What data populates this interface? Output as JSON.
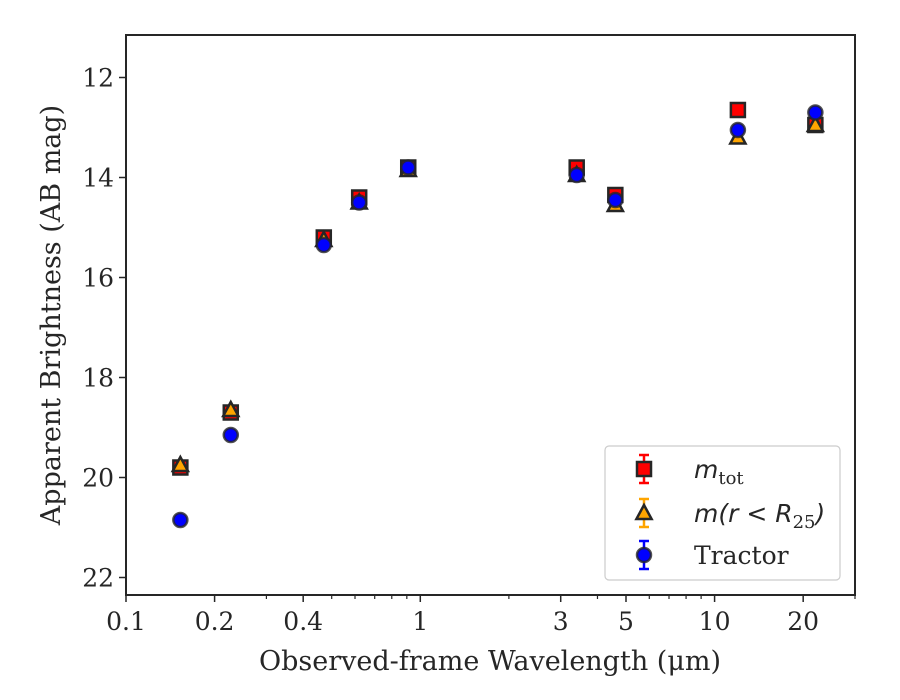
{
  "chart_data": {
    "type": "scatter",
    "title": "",
    "xlabel": "Observed-frame Wavelength (μm)",
    "ylabel": "Apparent Brightness (AB mag)",
    "xscale": "log",
    "xlim": [
      0.1,
      30
    ],
    "ylim": [
      22.35,
      11.15
    ],
    "y_inverted": true,
    "x_ticks": [
      0.1,
      0.2,
      0.4,
      1,
      3,
      5,
      10,
      20
    ],
    "x_tick_labels": [
      "0.1",
      "0.2",
      "0.4",
      "1",
      "3",
      "5",
      "10",
      "20"
    ],
    "y_ticks": [
      12,
      14,
      16,
      18,
      20,
      22
    ],
    "y_tick_labels": [
      "12",
      "14",
      "16",
      "18",
      "20",
      "22"
    ],
    "grid": false,
    "legend_position": "bottom-right",
    "series": [
      {
        "name": "m_tot",
        "legend_base": "m",
        "legend_sub": "tot",
        "marker": "square",
        "color": "#ff0000",
        "edge_color": "#262626",
        "x": [
          0.153,
          0.227,
          0.47,
          0.62,
          0.91,
          3.4,
          4.6,
          12.0,
          22.0
        ],
        "y": [
          19.8,
          18.7,
          15.2,
          14.4,
          13.8,
          13.8,
          14.35,
          12.65,
          12.95
        ]
      },
      {
        "name": "m(r < R25)",
        "legend_base": "m(r < R",
        "legend_sub": "25",
        "legend_tail": ")",
        "marker": "triangle",
        "color": "#ffa500",
        "edge_color": "#262626",
        "x": [
          0.153,
          0.227,
          0.47,
          0.62,
          0.91,
          3.4,
          4.6,
          12.0,
          22.0
        ],
        "y": [
          19.75,
          18.65,
          15.25,
          14.5,
          13.85,
          13.95,
          14.55,
          13.2,
          12.95
        ]
      },
      {
        "name": "Tractor",
        "legend_base": "Tractor",
        "marker": "circle",
        "color": "#0000ff",
        "edge_color": "#262626",
        "x": [
          0.153,
          0.227,
          0.47,
          0.62,
          0.91,
          3.4,
          4.6,
          12.0,
          22.0
        ],
        "y": [
          20.85,
          19.15,
          15.35,
          14.5,
          13.8,
          13.95,
          14.45,
          13.05,
          12.7
        ]
      }
    ]
  }
}
